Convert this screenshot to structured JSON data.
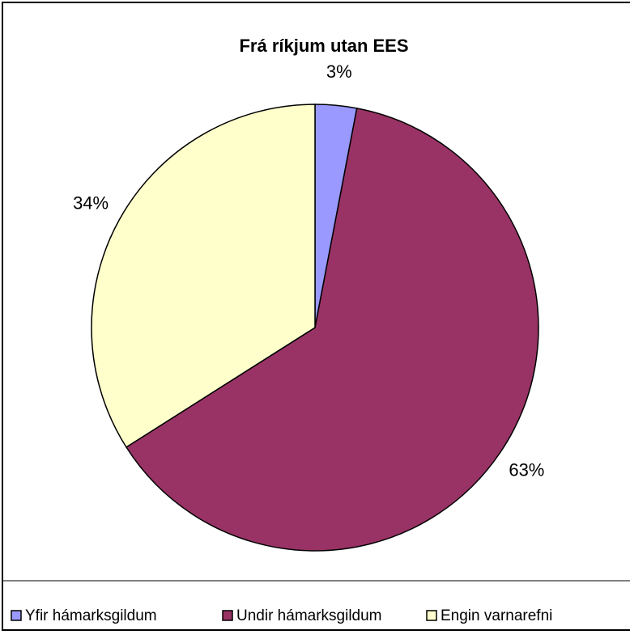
{
  "chart_data": {
    "type": "pie",
    "title": "Frá ríkjum utan EES",
    "categories": [
      "Yfir hámarksgildum",
      "Undir hámarksgildum",
      "Engin varnarefni"
    ],
    "values": [
      3,
      63,
      34
    ],
    "value_labels": [
      "3%",
      "63%",
      "34%"
    ],
    "colors": [
      "#9999ff",
      "#993366",
      "#ffffcc"
    ],
    "legend": "bottom"
  }
}
